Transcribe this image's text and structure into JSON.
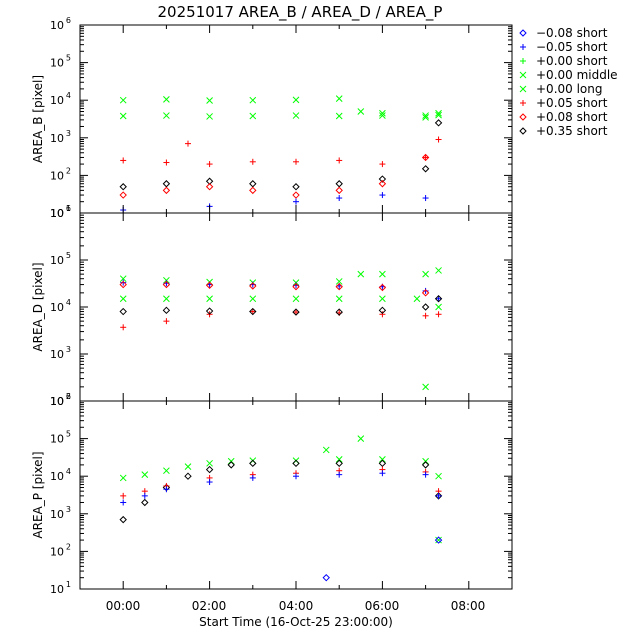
{
  "title": "20251017 AREA_B / AREA_D / AREA_P",
  "xlabel": "Start Time (16-Oct-25 23:00:00)",
  "x_ticks": [
    "00:00",
    "02:00",
    "04:00",
    "06:00",
    "08:00"
  ],
  "legend": [
    {
      "symbol": "diamond",
      "label": "−0.08 short",
      "color": "#0000ff"
    },
    {
      "symbol": "plus",
      "label": "−0.05 short",
      "color": "#0000ff"
    },
    {
      "symbol": "plus",
      "label": "+0.00 short",
      "color": "#00ff00"
    },
    {
      "symbol": "x",
      "label": "+0.00 middle",
      "color": "#00ff00"
    },
    {
      "symbol": "x",
      "label": "+0.00 long",
      "color": "#00ff00"
    },
    {
      "symbol": "plus",
      "label": "+0.05 short",
      "color": "#ff0000"
    },
    {
      "symbol": "diamond",
      "label": "+0.08 short",
      "color": "#ff0000"
    },
    {
      "symbol": "diamond",
      "label": "+0.35 short",
      "color": "#000000"
    }
  ],
  "chart_data": [
    {
      "type": "scatter",
      "ylabel": "AREA_B [pixel]",
      "yscale": "log",
      "ylim": [
        10,
        1000000
      ],
      "xlim_hours": [
        -1,
        9
      ],
      "y_ticks": [
        "10^1",
        "10^2",
        "10^3",
        "10^4",
        "10^5",
        "10^6"
      ],
      "series": [
        {
          "label": "+0.00 long",
          "x_hours": [
            0.0,
            1.0,
            2.0,
            3.0,
            4.0,
            5.0,
            5.5,
            6.0,
            7.0,
            7.3
          ],
          "values": [
            10000,
            10500,
            9800,
            10000,
            10200,
            11000,
            5000,
            4500,
            3500,
            4000
          ]
        },
        {
          "label": "+0.00 middle",
          "x_hours": [
            0.0,
            1.0,
            2.0,
            3.0,
            4.0,
            5.0,
            6.0,
            7.0,
            7.3
          ],
          "values": [
            3800,
            3900,
            3700,
            3800,
            3900,
            3800,
            3900,
            3900,
            4500
          ]
        },
        {
          "label": "+0.05 short",
          "x_hours": [
            0.0,
            1.0,
            1.5,
            2.0,
            3.0,
            4.0,
            5.0,
            6.0,
            7.0,
            7.3
          ],
          "values": [
            250,
            220,
            700,
            200,
            230,
            230,
            250,
            200,
            300,
            900
          ]
        },
        {
          "label": "+0.35 short",
          "x_hours": [
            0.0,
            1.0,
            2.0,
            3.0,
            4.0,
            5.0,
            6.0,
            7.0,
            7.3
          ],
          "values": [
            50,
            60,
            70,
            60,
            50,
            60,
            80,
            150,
            2500
          ]
        },
        {
          "label": "+0.08 short",
          "x_hours": [
            0.0,
            1.0,
            2.0,
            3.0,
            4.0,
            5.0,
            6.0,
            7.0
          ],
          "values": [
            30,
            40,
            50,
            40,
            30,
            40,
            60,
            300
          ]
        },
        {
          "label": "−0.05 short",
          "x_hours": [
            0.0,
            2.0,
            4.0,
            5.0,
            6.0,
            7.0
          ],
          "values": [
            12,
            15,
            20,
            25,
            30,
            25
          ]
        }
      ]
    },
    {
      "type": "scatter",
      "ylabel": "AREA_D [pixel]",
      "yscale": "log",
      "ylim": [
        100,
        1000000
      ],
      "xlim_hours": [
        -1,
        9
      ],
      "y_ticks": [
        "10^2",
        "10^3",
        "10^4",
        "10^5",
        "10^6"
      ],
      "series": [
        {
          "label": "+0.00 long",
          "x_hours": [
            0.0,
            1.0,
            2.0,
            3.0,
            4.0,
            5.0,
            5.5,
            6.0,
            7.0,
            7.3
          ],
          "values": [
            40000,
            37000,
            34000,
            33000,
            33000,
            35000,
            50000,
            50000,
            50000,
            60000
          ]
        },
        {
          "label": "+0.00 middle",
          "x_hours": [
            0.0,
            1.0,
            2.0,
            3.0,
            4.0,
            5.0,
            6.0,
            6.8,
            7.0,
            7.3
          ],
          "values": [
            15000,
            15000,
            15000,
            15000,
            15000,
            15000,
            15000,
            15000,
            200,
            10000
          ]
        },
        {
          "label": "−0.05 short",
          "x_hours": [
            0.0,
            1.0,
            2.0,
            3.0,
            4.0,
            5.0,
            6.0,
            7.0,
            7.3
          ],
          "values": [
            33000,
            32000,
            30000,
            30000,
            29000,
            28000,
            27000,
            22000,
            15000
          ]
        },
        {
          "label": "+0.05 short",
          "x_hours": [
            0.0,
            1.0,
            2.0,
            3.0,
            4.0,
            5.0,
            6.0,
            7.0,
            7.3
          ],
          "values": [
            3700,
            5000,
            7000,
            8000,
            7800,
            7500,
            7000,
            6500,
            7000
          ]
        },
        {
          "label": "+0.35 short",
          "x_hours": [
            0.0,
            1.0,
            2.0,
            3.0,
            4.0,
            5.0,
            6.0,
            7.0,
            7.3
          ],
          "values": [
            8000,
            8500,
            8200,
            8000,
            7800,
            7800,
            8500,
            10000,
            15000
          ]
        },
        {
          "label": "+0.08 short",
          "x_hours": [
            0.0,
            1.0,
            2.0,
            3.0,
            4.0,
            5.0,
            6.0,
            7.0
          ],
          "values": [
            30000,
            30000,
            29000,
            28000,
            27000,
            27000,
            26000,
            20000
          ]
        }
      ]
    },
    {
      "type": "scatter",
      "ylabel": "AREA_P [pixel]",
      "yscale": "log",
      "ylim": [
        10,
        1000000
      ],
      "xlim_hours": [
        -1,
        9
      ],
      "y_ticks": [
        "10^1",
        "10^2",
        "10^3",
        "10^4",
        "10^5",
        "10^6"
      ],
      "series": [
        {
          "label": "+0.00 long",
          "x_hours": [
            0.0,
            0.5,
            1.0,
            1.5,
            2.0,
            2.5,
            3.0,
            4.0,
            5.0,
            6.0,
            7.0,
            7.3
          ],
          "values": [
            9000,
            11000,
            14000,
            18000,
            22000,
            25000,
            26000,
            26000,
            28000,
            28000,
            25000,
            10000
          ]
        },
        {
          "label": "+0.00 middle",
          "x_hours": [
            4.7,
            5.5,
            7.3
          ],
          "values": [
            50000,
            100000,
            200
          ]
        },
        {
          "label": "+0.35 short",
          "x_hours": [
            0.0,
            0.5,
            1.0,
            1.5,
            2.0,
            2.5,
            3.0,
            4.0,
            5.0,
            6.0,
            7.0,
            7.3
          ],
          "values": [
            700,
            2000,
            5000,
            10000,
            15000,
            20000,
            22000,
            22000,
            22000,
            22000,
            20000,
            3000
          ]
        },
        {
          "label": "+0.05 short",
          "x_hours": [
            0.0,
            0.5,
            1.0,
            2.0,
            3.0,
            4.0,
            5.0,
            6.0,
            7.0,
            7.3
          ],
          "values": [
            3000,
            4000,
            5500,
            9000,
            11000,
            12000,
            14000,
            15000,
            13000,
            4000
          ]
        },
        {
          "label": "−0.05 short",
          "x_hours": [
            0.0,
            0.5,
            1.0,
            2.0,
            3.0,
            4.0,
            5.0,
            6.0,
            7.0,
            7.3
          ],
          "values": [
            2000,
            3000,
            4500,
            7000,
            9000,
            10000,
            11000,
            12000,
            11000,
            3000
          ]
        },
        {
          "label": "−0.08 short",
          "x_hours": [
            4.7,
            7.3
          ],
          "values": [
            20,
            200
          ]
        }
      ]
    }
  ]
}
